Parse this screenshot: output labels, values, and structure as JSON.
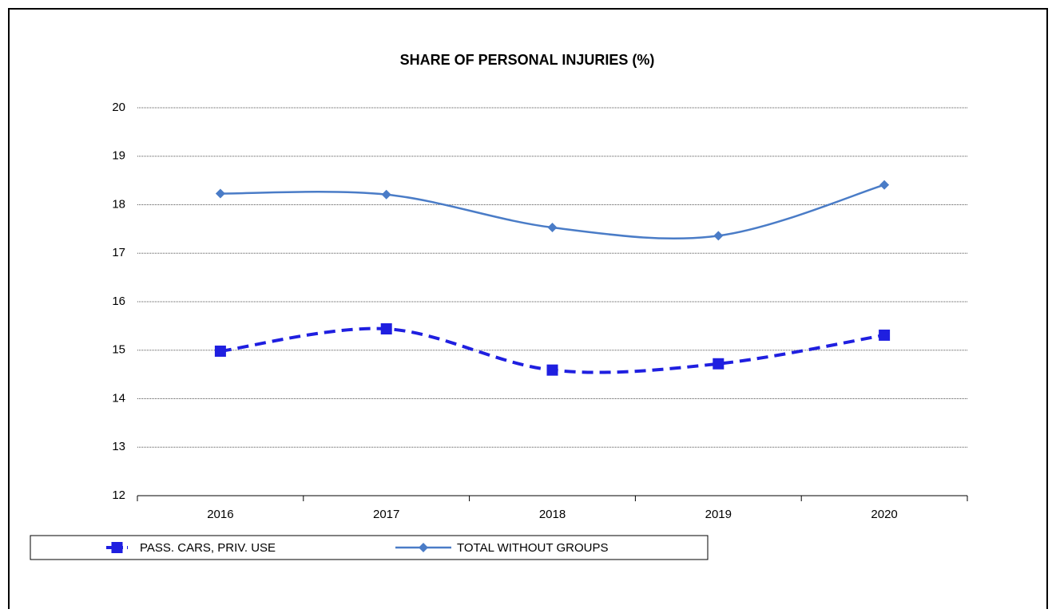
{
  "chart_data": {
    "type": "line",
    "title": "SHARE OF PERSONAL INJURIES (%)",
    "categories": [
      "2016",
      "2017",
      "2018",
      "2019",
      "2020"
    ],
    "series": [
      {
        "name": "PASS. CARS, PRIV. USE",
        "color": "#1f1fe0",
        "style": "dashed",
        "marker": "square",
        "values": [
          14.98,
          15.44,
          14.59,
          14.72,
          15.31
        ]
      },
      {
        "name": "TOTAL WITHOUT GROUPS",
        "color": "#4a7cc7",
        "style": "solid",
        "marker": "diamond",
        "values": [
          18.23,
          18.21,
          17.53,
          17.36,
          18.41
        ]
      }
    ],
    "ylim": [
      12,
      20
    ],
    "yticks": [
      12,
      13,
      14,
      15,
      16,
      17,
      18,
      19,
      20
    ],
    "grid": true,
    "smooth": true,
    "legend": "bottom"
  }
}
